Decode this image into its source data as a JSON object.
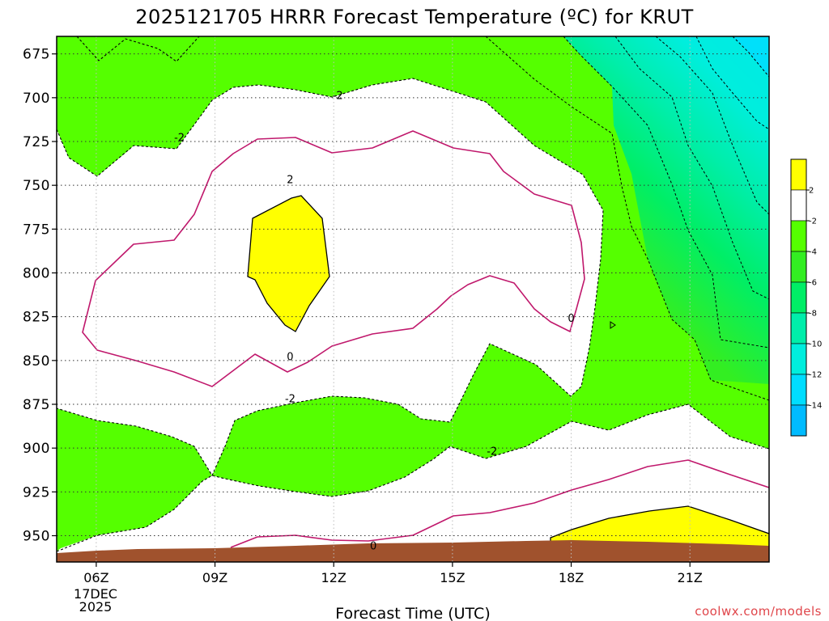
{
  "chart_data": {
    "type": "contour",
    "title": "2025121705 HRRR Forecast Temperature (ºC) for KRUT",
    "xlabel": "Forecast Time (UTC)",
    "ylabel": "",
    "x_range_hours_utc": [
      5.0,
      23.0
    ],
    "y_range_hPa": [
      965,
      665
    ],
    "x_ticks": [
      {
        "hour": 6,
        "label": "06Z"
      },
      {
        "hour": 9,
        "label": "09Z"
      },
      {
        "hour": 12,
        "label": "12Z"
      },
      {
        "hour": 15,
        "label": "15Z"
      },
      {
        "hour": 18,
        "label": "18Z"
      },
      {
        "hour": 21,
        "label": "21Z"
      }
    ],
    "x_date_labels": [
      "17DEC",
      "2025"
    ],
    "y_ticks": [
      675,
      700,
      725,
      750,
      775,
      800,
      825,
      850,
      875,
      900,
      925,
      950
    ],
    "colorbar": {
      "labels": [
        "2",
        "-2",
        "-4",
        "-6",
        "-8",
        "-10",
        "-12",
        "-14"
      ],
      "bins": [
        {
          "range": "2 to 4",
          "color": "#ffff00"
        },
        {
          "range": "-2 to 2",
          "color": "#ffffff"
        },
        {
          "range": "-4 to -2",
          "color": "#55ff00"
        },
        {
          "range": "-6 to -4",
          "color": "#33ee22"
        },
        {
          "range": "-8 to -6",
          "color": "#00ee66"
        },
        {
          "range": "-10 to -8",
          "color": "#00eeaa"
        },
        {
          "range": "-12 to -10",
          "color": "#00eedd"
        },
        {
          "range": "-14 to -12",
          "color": "#00ddff"
        },
        {
          "range": "-16 to -14",
          "color": "#00bbff"
        }
      ]
    },
    "contour_labels": [
      {
        "text": "-2",
        "hour": 12.1,
        "p": 699
      },
      {
        "text": "-2",
        "hour": 8.1,
        "p": 723
      },
      {
        "text": "2",
        "hour": 10.9,
        "p": 747
      },
      {
        "text": "0",
        "hour": 18.0,
        "p": 826
      },
      {
        "text": "0",
        "hour": 10.9,
        "p": 848
      },
      {
        "text": "-2",
        "hour": 10.9,
        "p": 872
      },
      {
        "text": "-2",
        "hour": 16.0,
        "p": 902
      },
      {
        "text": "0",
        "hour": 13.0,
        "p": 956
      }
    ],
    "credit": "coolwx.com/models",
    "colors": {
      "yellow": "#ffff00",
      "white": "#ffffff",
      "green": "#55ff00",
      "ground": "#a0522d",
      "zero_line": "#c0186c",
      "cold_palette": [
        "#33ee22",
        "#00ee66",
        "#00eeaa",
        "#00eedd",
        "#00ddff",
        "#00bbff"
      ]
    }
  }
}
